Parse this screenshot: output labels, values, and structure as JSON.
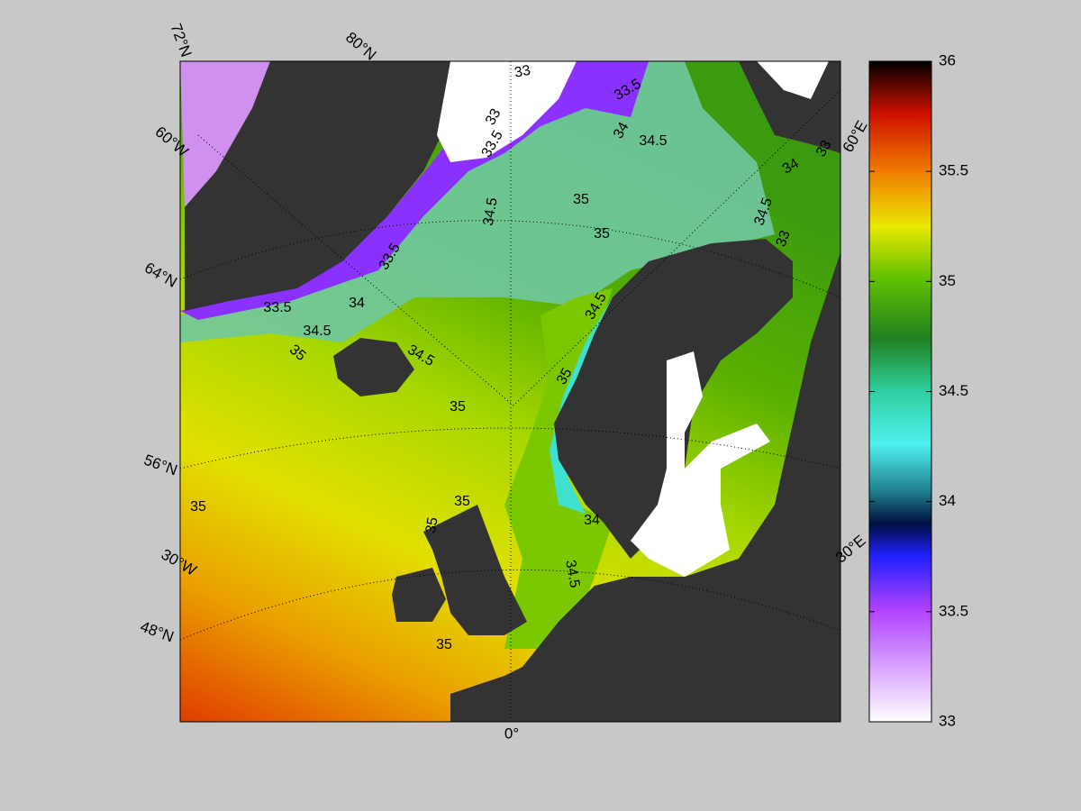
{
  "map": {
    "graticule_labels": [
      "72°N",
      "80°N",
      "60°W",
      "64°N",
      "56°N",
      "30°W",
      "48°N",
      "0°",
      "30°E",
      "60°E"
    ],
    "contour_labels": [
      33,
      33.5,
      33,
      33.5,
      34,
      34.5,
      35,
      34.5,
      35,
      34.5,
      33,
      34,
      33.5,
      33.5,
      34,
      34.5,
      35,
      34.5,
      35,
      34.5,
      35,
      35,
      35,
      35,
      34,
      34.5,
      35,
      33
    ]
  },
  "colorbar": {
    "lim": [
      33,
      36
    ],
    "ticks": [
      33,
      33.5,
      34,
      34.5,
      35,
      35.5,
      36
    ]
  }
}
